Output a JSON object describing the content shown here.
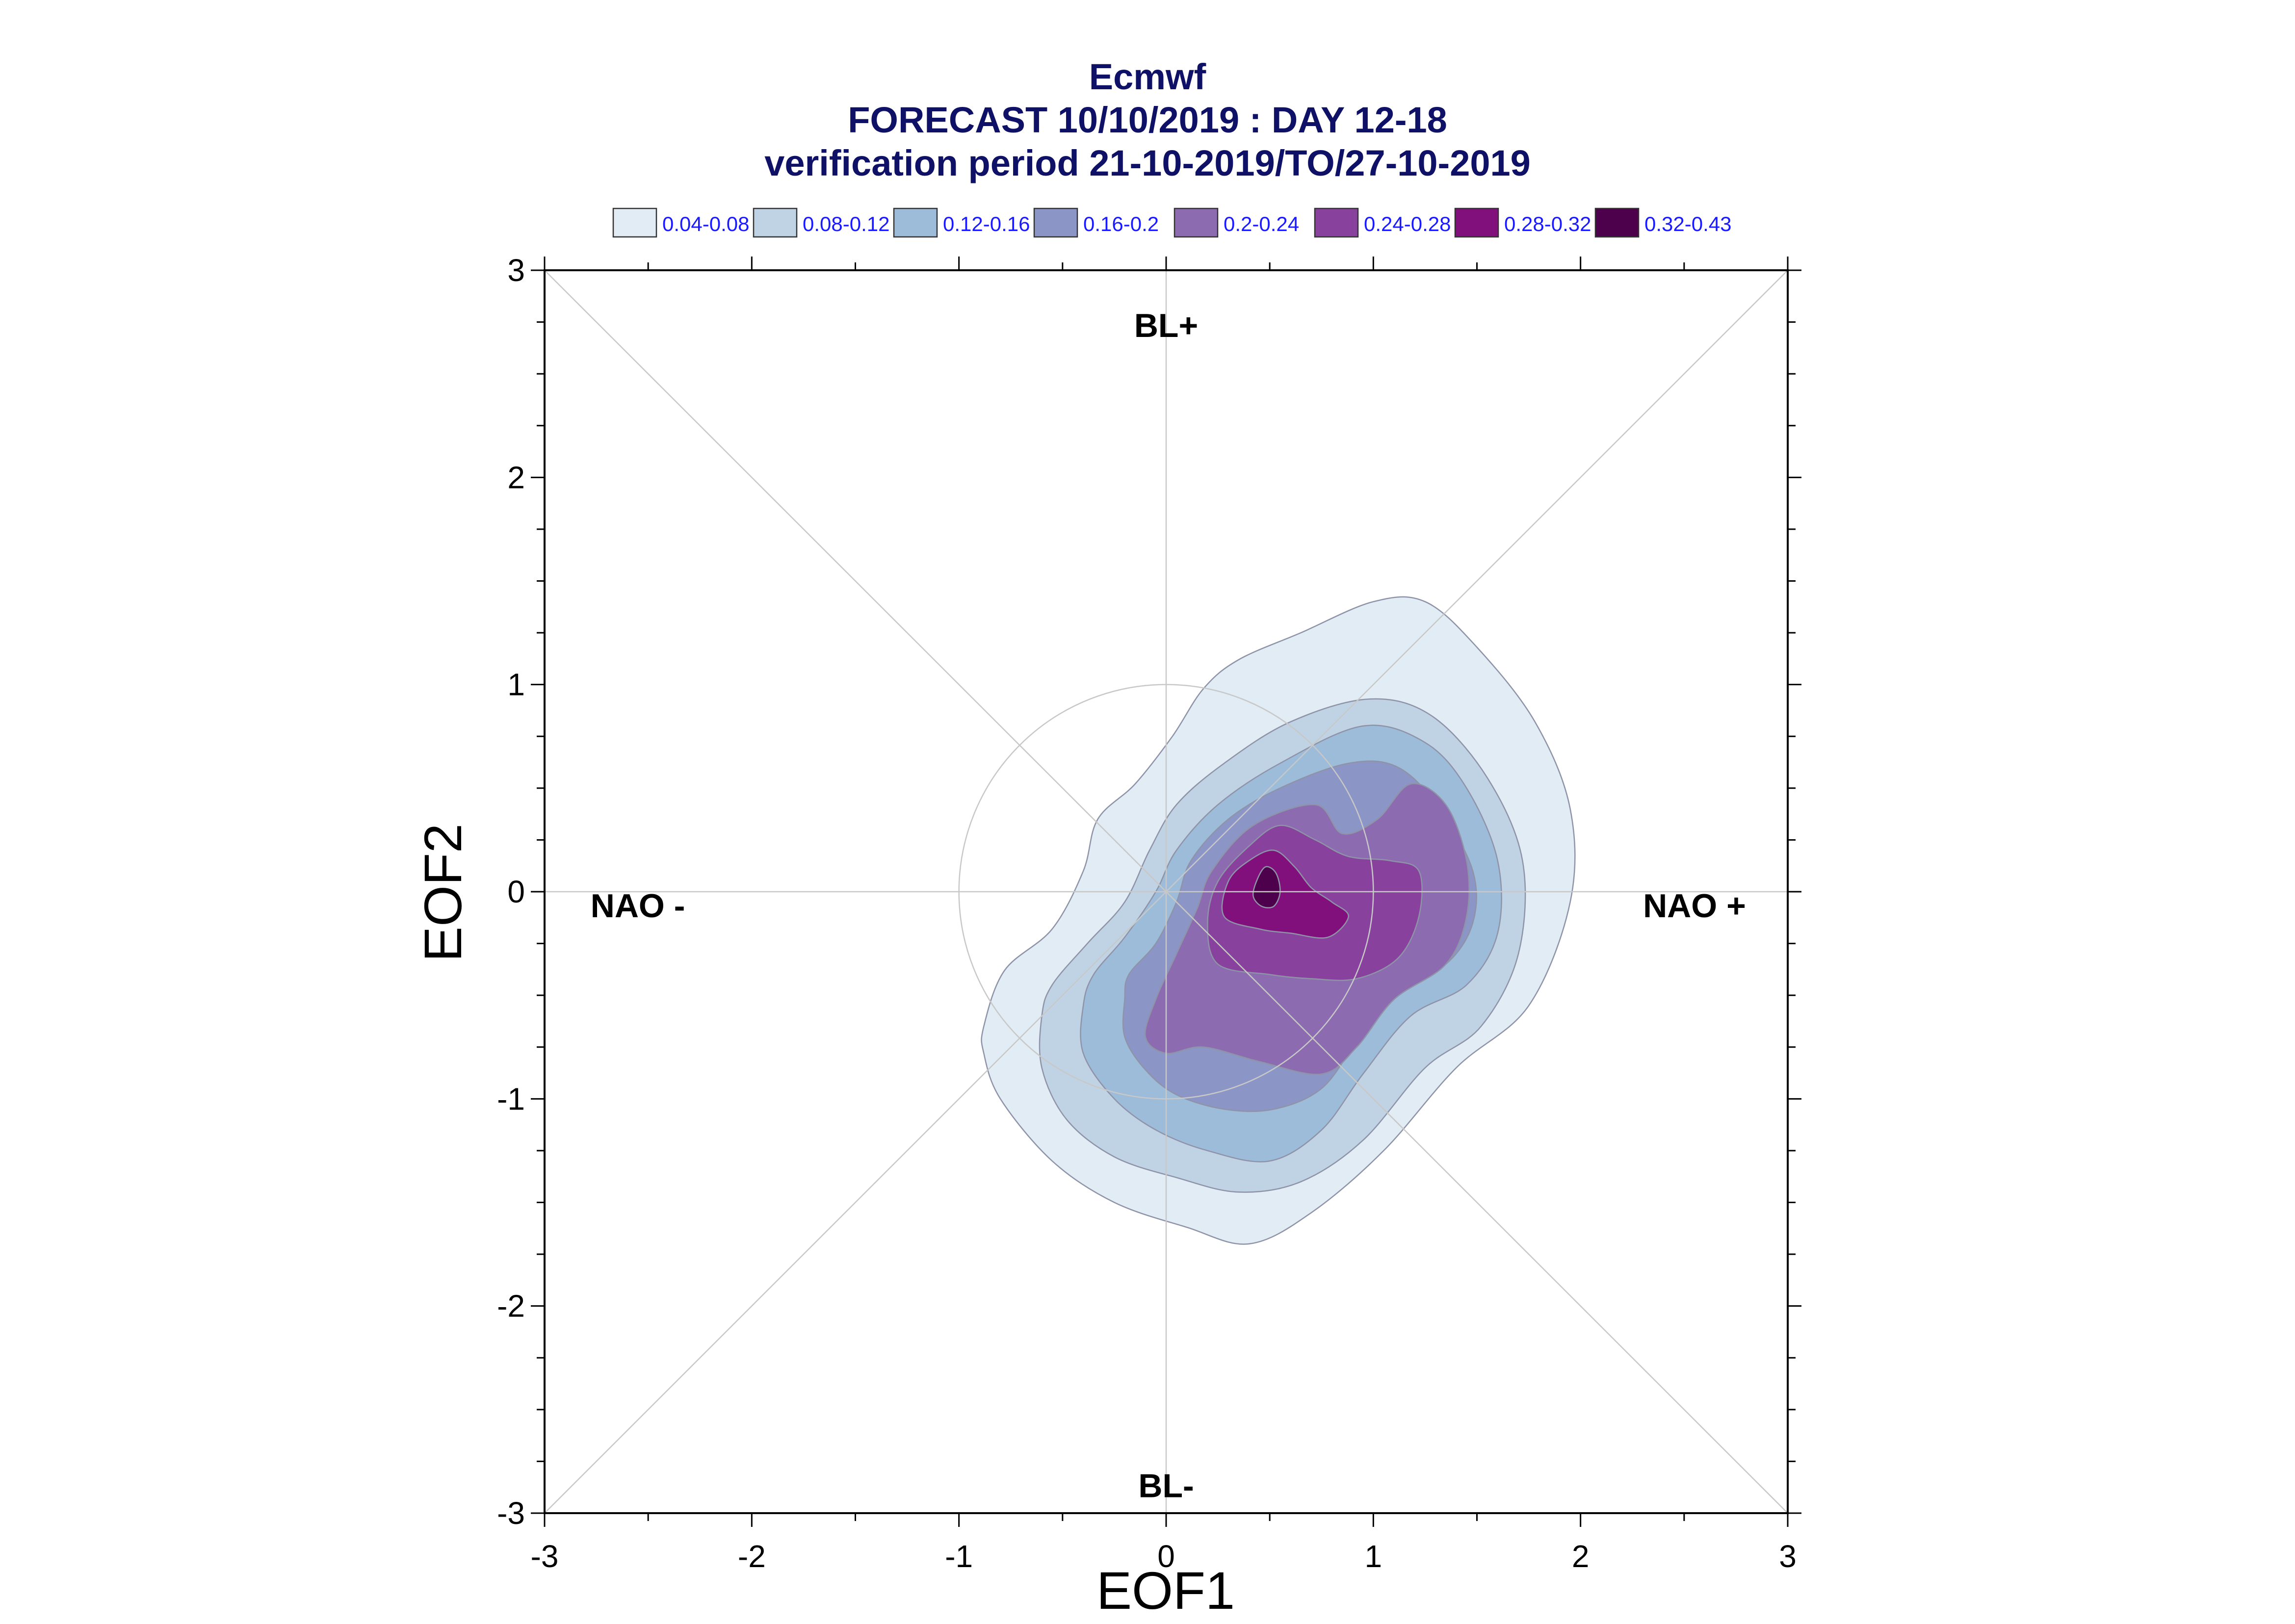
{
  "chart_data": {
    "type": "contour",
    "title": "Ecmwf",
    "subtitle": "FORECAST 10/10/2019 : DAY 12-18",
    "subtitle2": "verification period 21-10-2019/TO/27-10-2019",
    "xlabel": "EOF1",
    "ylabel": "EOF2",
    "xlim": [
      -3,
      3
    ],
    "ylim": [
      -3,
      3
    ],
    "xticks": [
      -3,
      -2,
      -1,
      0,
      1,
      2,
      3
    ],
    "yticks": [
      -3,
      -2,
      -1,
      0,
      1,
      2,
      3
    ],
    "xtick_labels": [
      "-3",
      "-2",
      "-1",
      "0",
      "1",
      "2",
      "3"
    ],
    "ytick_labels": [
      "-3",
      "-2",
      "-1",
      "0",
      "1",
      "2",
      "3"
    ],
    "grid": false,
    "reference_circle_radius": 1,
    "diagonals": true,
    "annotations": [
      {
        "text": "BL+",
        "x": 0,
        "y": 2.72
      },
      {
        "text": "BL-",
        "x": 0,
        "y": -2.88
      },
      {
        "text": "NAO -",
        "x": -2.55,
        "y": -0.08
      },
      {
        "text": "NAO +",
        "x": 2.55,
        "y": -0.08
      }
    ],
    "legend": {
      "position": "top",
      "entries": [
        {
          "label": "0.04-0.08",
          "color": "#e1ecf4"
        },
        {
          "label": "0.08-0.12",
          "color": "#c0d3e4"
        },
        {
          "label": "0.12-0.16",
          "color": "#9dbcda"
        },
        {
          "label": "0.16-0.2",
          "color": "#8c96c6"
        },
        {
          "label": "0.2-0.24",
          "color": "#8c6bb1"
        },
        {
          "label": "0.24-0.28",
          "color": "#88419d"
        },
        {
          "label": "0.28-0.32",
          "color": "#810f7c"
        },
        {
          "label": "0.32-0.43",
          "color": "#4d004b"
        }
      ]
    },
    "levels": [
      {
        "range": "0.04-0.08",
        "outline": [
          [
            -0.88,
            -0.78
          ],
          [
            -0.88,
            -0.65
          ],
          [
            -0.78,
            -0.38
          ],
          [
            -0.55,
            -0.18
          ],
          [
            -0.4,
            0.1
          ],
          [
            -0.33,
            0.35
          ],
          [
            -0.15,
            0.52
          ],
          [
            0.03,
            0.75
          ],
          [
            0.18,
            0.98
          ],
          [
            0.35,
            1.12
          ],
          [
            0.65,
            1.25
          ],
          [
            1.0,
            1.4
          ],
          [
            1.25,
            1.4
          ],
          [
            1.5,
            1.18
          ],
          [
            1.78,
            0.82
          ],
          [
            1.95,
            0.4
          ],
          [
            1.95,
            -0.05
          ],
          [
            1.75,
            -0.55
          ],
          [
            1.4,
            -0.85
          ],
          [
            1.05,
            -1.25
          ],
          [
            0.7,
            -1.55
          ],
          [
            0.4,
            -1.7
          ],
          [
            0.1,
            -1.62
          ],
          [
            -0.25,
            -1.5
          ],
          [
            -0.55,
            -1.3
          ],
          [
            -0.8,
            -1.0
          ]
        ]
      },
      {
        "range": "0.08-0.12",
        "outline": [
          [
            -0.6,
            -0.6
          ],
          [
            -0.55,
            -0.45
          ],
          [
            -0.38,
            -0.25
          ],
          [
            -0.2,
            -0.05
          ],
          [
            -0.08,
            0.2
          ],
          [
            0.05,
            0.42
          ],
          [
            0.28,
            0.62
          ],
          [
            0.6,
            0.82
          ],
          [
            0.98,
            0.93
          ],
          [
            1.28,
            0.85
          ],
          [
            1.55,
            0.55
          ],
          [
            1.72,
            0.15
          ],
          [
            1.7,
            -0.3
          ],
          [
            1.52,
            -0.65
          ],
          [
            1.25,
            -0.85
          ],
          [
            0.95,
            -1.2
          ],
          [
            0.65,
            -1.4
          ],
          [
            0.35,
            -1.45
          ],
          [
            0.05,
            -1.38
          ],
          [
            -0.25,
            -1.28
          ],
          [
            -0.48,
            -1.1
          ],
          [
            -0.6,
            -0.85
          ]
        ]
      },
      {
        "range": "0.12-0.16",
        "outline": [
          [
            -0.4,
            -0.55
          ],
          [
            -0.35,
            -0.4
          ],
          [
            -0.2,
            -0.22
          ],
          [
            -0.05,
            0.0
          ],
          [
            0.05,
            0.2
          ],
          [
            0.25,
            0.42
          ],
          [
            0.55,
            0.62
          ],
          [
            0.95,
            0.8
          ],
          [
            1.25,
            0.72
          ],
          [
            1.45,
            0.5
          ],
          [
            1.6,
            0.15
          ],
          [
            1.6,
            -0.2
          ],
          [
            1.45,
            -0.45
          ],
          [
            1.18,
            -0.6
          ],
          [
            0.95,
            -0.88
          ],
          [
            0.75,
            -1.15
          ],
          [
            0.5,
            -1.3
          ],
          [
            0.2,
            -1.25
          ],
          [
            -0.05,
            -1.15
          ],
          [
            -0.25,
            -1.0
          ],
          [
            -0.4,
            -0.78
          ]
        ]
      },
      {
        "range": "0.16-0.2",
        "outline": [
          [
            -0.2,
            -0.52
          ],
          [
            -0.18,
            -0.4
          ],
          [
            -0.05,
            -0.25
          ],
          [
            0.05,
            -0.05
          ],
          [
            0.12,
            0.15
          ],
          [
            0.3,
            0.35
          ],
          [
            0.55,
            0.5
          ],
          [
            0.88,
            0.62
          ],
          [
            1.12,
            0.6
          ],
          [
            1.32,
            0.4
          ],
          [
            1.48,
            0.1
          ],
          [
            1.48,
            -0.15
          ],
          [
            1.35,
            -0.35
          ],
          [
            1.08,
            -0.5
          ],
          [
            0.92,
            -0.72
          ],
          [
            0.75,
            -0.95
          ],
          [
            0.52,
            -1.05
          ],
          [
            0.28,
            -1.05
          ],
          [
            0.05,
            -0.98
          ],
          [
            -0.1,
            -0.86
          ],
          [
            -0.2,
            -0.7
          ]
        ]
      },
      {
        "range": "0.2-0.24",
        "outline": [
          [
            -0.1,
            -0.7
          ],
          [
            -0.05,
            -0.52
          ],
          [
            0.05,
            -0.3
          ],
          [
            0.15,
            -0.08
          ],
          [
            0.22,
            0.1
          ],
          [
            0.42,
            0.32
          ],
          [
            0.72,
            0.42
          ],
          [
            0.85,
            0.28
          ],
          [
            1.02,
            0.35
          ],
          [
            1.18,
            0.52
          ],
          [
            1.35,
            0.42
          ],
          [
            1.45,
            0.15
          ],
          [
            1.45,
            -0.12
          ],
          [
            1.35,
            -0.35
          ],
          [
            1.1,
            -0.52
          ],
          [
            0.92,
            -0.75
          ],
          [
            0.75,
            -0.88
          ],
          [
            0.45,
            -0.82
          ],
          [
            0.18,
            -0.75
          ],
          [
            0.0,
            -0.78
          ]
        ]
      },
      {
        "range": "0.24-0.28",
        "outline": [
          [
            0.25,
            -0.35
          ],
          [
            0.2,
            -0.15
          ],
          [
            0.25,
            0.05
          ],
          [
            0.4,
            0.22
          ],
          [
            0.55,
            0.32
          ],
          [
            0.72,
            0.25
          ],
          [
            0.88,
            0.17
          ],
          [
            1.08,
            0.15
          ],
          [
            1.22,
            0.1
          ],
          [
            1.22,
            -0.12
          ],
          [
            1.12,
            -0.32
          ],
          [
            0.92,
            -0.42
          ],
          [
            0.7,
            -0.42
          ],
          [
            0.5,
            -0.4
          ]
        ]
      },
      {
        "range": "0.28-0.32",
        "outline": [
          [
            0.28,
            -0.12
          ],
          [
            0.3,
            0.05
          ],
          [
            0.4,
            0.15
          ],
          [
            0.52,
            0.2
          ],
          [
            0.62,
            0.12
          ],
          [
            0.7,
            0.02
          ],
          [
            0.8,
            -0.05
          ],
          [
            0.88,
            -0.12
          ],
          [
            0.78,
            -0.22
          ],
          [
            0.6,
            -0.2
          ],
          [
            0.45,
            -0.18
          ]
        ]
      },
      {
        "range": "0.32-0.43",
        "outline": [
          [
            0.42,
            -0.02
          ],
          [
            0.44,
            0.06
          ],
          [
            0.48,
            0.12
          ],
          [
            0.53,
            0.09
          ],
          [
            0.55,
            0.0
          ],
          [
            0.52,
            -0.07
          ],
          [
            0.46,
            -0.07
          ]
        ]
      }
    ]
  }
}
